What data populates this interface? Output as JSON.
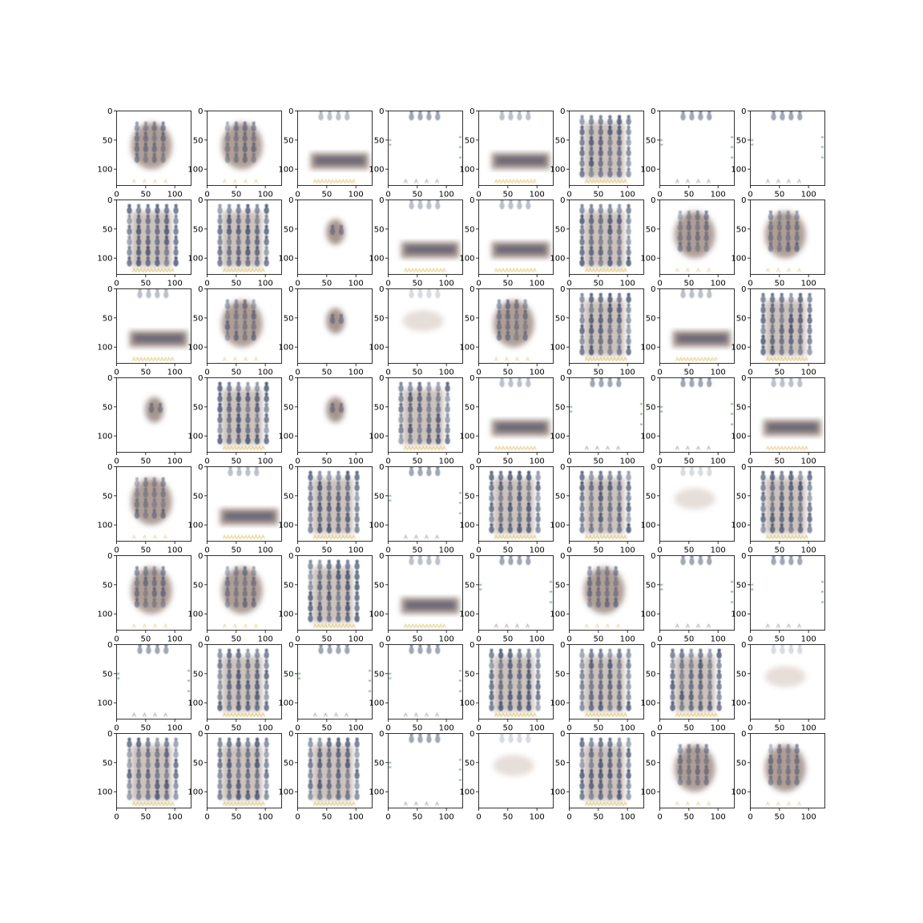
{
  "figure": {
    "rows": 8,
    "cols": 8,
    "axis": {
      "xlim": [
        0,
        128
      ],
      "ylim": [
        128,
        0
      ],
      "xticks": [
        0,
        50,
        100
      ],
      "yticks": [
        0,
        50,
        100
      ],
      "xtick_labels": [
        "0",
        "50",
        "100"
      ],
      "ytick_labels": [
        "0",
        "50",
        "100"
      ]
    },
    "colors": {
      "background": "#ffffff",
      "frame": "#000000",
      "navy": "#2c3a5c",
      "brown": "#6b4f45",
      "tan": "#b8a090",
      "yellow": "#d9b84a",
      "green": "#3e7a3a"
    },
    "pattern_legend": {
      "grid": "dense grid of dark navy figure-shaped sprites",
      "block": "blurred brown/navy blob",
      "band": "horizontal dark band",
      "small": "small central blob",
      "faint": "light haze",
      "empty": "mostly white with sprites on edges"
    },
    "panels": [
      [
        "block",
        "block",
        "band",
        "empty",
        "band",
        "grid",
        "empty",
        "empty"
      ],
      [
        "grid",
        "grid",
        "small",
        "band",
        "band",
        "grid",
        "block",
        "block"
      ],
      [
        "band",
        "block",
        "small",
        "faint",
        "block",
        "grid",
        "band",
        "grid"
      ],
      [
        "small",
        "grid",
        "small",
        "grid",
        "band",
        "empty",
        "empty",
        "band"
      ],
      [
        "block",
        "band",
        "grid",
        "empty",
        "grid",
        "grid",
        "faint",
        "grid"
      ],
      [
        "block",
        "block",
        "grid",
        "band",
        "empty",
        "block",
        "empty",
        "empty"
      ],
      [
        "empty",
        "grid",
        "empty",
        "empty",
        "grid",
        "grid",
        "grid",
        "faint"
      ],
      [
        "grid",
        "grid",
        "grid",
        "empty",
        "faint",
        "grid",
        "block",
        "block"
      ]
    ]
  }
}
